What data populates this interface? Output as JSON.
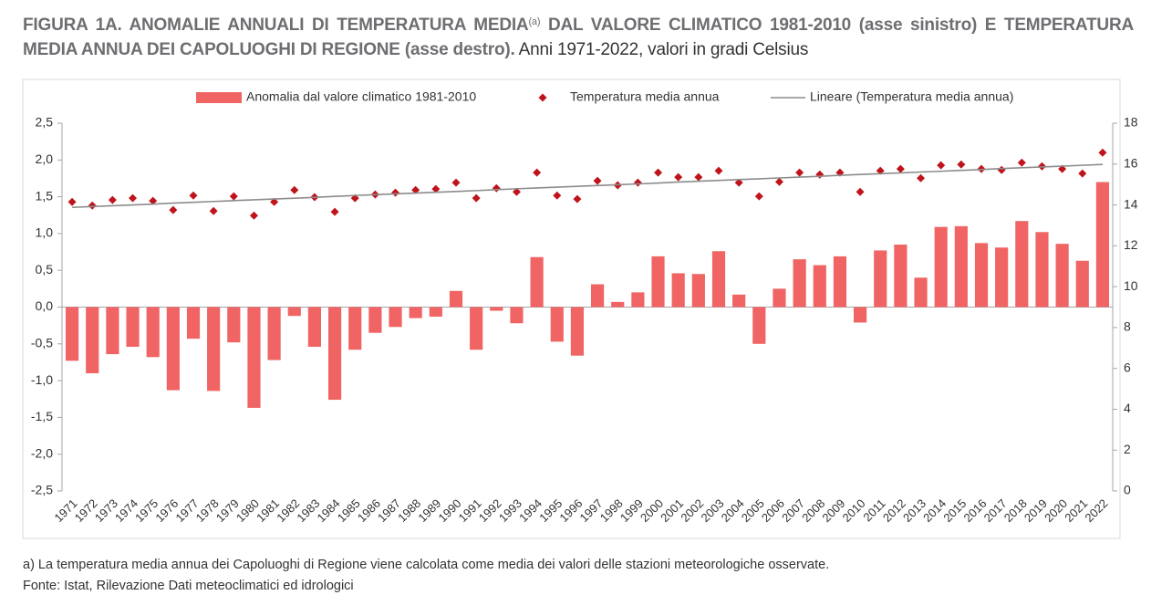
{
  "chart_data": {
    "type": "combo",
    "title": "FIGURA 1A. ANOMALIE ANNUALI DI TEMPERATURA MEDIA",
    "title_note": "(a)",
    "title_rest": "DAL VALORE CLIMATICO 1981-2010 (asse sinistro) E TEMPERATURA MEDIA ANNUA DEI CAPOLUOGHI DI REGIONE (asse destro).",
    "subtitle": "Anni 1971-2022, valori in gradi Celsius",
    "categories": [
      "1971",
      "1972",
      "1973",
      "1974",
      "1975",
      "1976",
      "1977",
      "1978",
      "1979",
      "1980",
      "1981",
      "1982",
      "1983",
      "1984",
      "1985",
      "1986",
      "1987",
      "1988",
      "1989",
      "1990",
      "1991",
      "1992",
      "1993",
      "1994",
      "1995",
      "1996",
      "1997",
      "1998",
      "1999",
      "2000",
      "2001",
      "2002",
      "2003",
      "2004",
      "2005",
      "2006",
      "2007",
      "2008",
      "2009",
      "2010",
      "2011",
      "2012",
      "2013",
      "2014",
      "2015",
      "2016",
      "2017",
      "2018",
      "2019",
      "2020",
      "2021",
      "2022"
    ],
    "series": [
      {
        "name": "Anomalia dal valore climatico 1981-2010",
        "type": "bar",
        "color": "#f06464",
        "values": [
          -0.73,
          -0.9,
          -0.64,
          -0.54,
          -0.68,
          -1.13,
          -0.43,
          -1.14,
          -0.48,
          -1.37,
          -0.72,
          -0.12,
          -0.54,
          -1.26,
          -0.58,
          -0.35,
          -0.27,
          -0.15,
          -0.13,
          0.22,
          -0.58,
          -0.05,
          -0.22,
          0.68,
          -0.47,
          -0.66,
          0.31,
          0.07,
          0.2,
          0.69,
          0.46,
          0.45,
          0.76,
          0.17,
          -0.5,
          0.25,
          0.65,
          0.57,
          0.69,
          -0.21,
          0.77,
          0.85,
          0.4,
          1.09,
          1.1,
          0.87,
          0.81,
          1.17,
          1.02,
          0.86,
          0.63,
          1.7
        ]
      },
      {
        "name": "Temperatura media annua",
        "type": "scatter",
        "axis": "y2",
        "color": "#c0141c",
        "values": [
          14.15,
          13.97,
          14.24,
          14.33,
          14.2,
          13.75,
          14.46,
          13.7,
          14.42,
          13.48,
          14.15,
          14.73,
          14.38,
          13.66,
          14.33,
          14.51,
          14.6,
          14.73,
          14.78,
          15.09,
          14.33,
          14.82,
          14.64,
          15.58,
          14.46,
          14.29,
          15.18,
          14.96,
          15.09,
          15.58,
          15.36,
          15.36,
          15.67,
          15.09,
          14.42,
          15.13,
          15.58,
          15.49,
          15.58,
          14.64,
          15.67,
          15.76,
          15.31,
          15.94,
          15.98,
          15.76,
          15.71,
          16.07,
          15.89,
          15.76,
          15.54,
          16.56
        ]
      },
      {
        "name": "Lineare (Temperatura media annua)",
        "type": "line",
        "axis": "y2",
        "color": "#8c8c8c",
        "values": [
          13.88,
          13.92,
          13.96,
          14.0,
          14.04,
          14.09,
          14.13,
          14.17,
          14.21,
          14.25,
          14.29,
          14.33,
          14.37,
          14.42,
          14.46,
          14.5,
          14.54,
          14.58,
          14.62,
          14.66,
          14.7,
          14.75,
          14.79,
          14.83,
          14.87,
          14.91,
          14.95,
          14.99,
          15.03,
          15.07,
          15.12,
          15.16,
          15.2,
          15.24,
          15.28,
          15.32,
          15.36,
          15.4,
          15.45,
          15.49,
          15.53,
          15.57,
          15.61,
          15.65,
          15.69,
          15.73,
          15.78,
          15.82,
          15.86,
          15.9,
          15.94,
          15.98
        ]
      }
    ],
    "ylim": [
      -2.5,
      2.5
    ],
    "yticks": [
      {
        "value": 2.5,
        "label": "2,5"
      },
      {
        "value": 2.0,
        "label": "2,0"
      },
      {
        "value": 1.5,
        "label": "1,5"
      },
      {
        "value": 1.0,
        "label": "1,0"
      },
      {
        "value": 0.5,
        "label": "0,5"
      },
      {
        "value": 0,
        "label": "0,0"
      },
      {
        "value": -0.5,
        "label": "-0,5"
      },
      {
        "value": -1.0,
        "label": "-1,0"
      },
      {
        "value": -1.5,
        "label": "-1,5"
      },
      {
        "value": -2.0,
        "label": "-2,0"
      },
      {
        "value": -2.5,
        "label": "-2,5"
      }
    ],
    "y2lim": [
      0,
      18
    ],
    "y2ticks": [
      0,
      2,
      4,
      6,
      8,
      10,
      12,
      14,
      16,
      18
    ],
    "grid": false,
    "legend": "top",
    "footnote": "a) La temperatura media annua dei Capoluoghi di Regione viene calcolata come media dei valori delle stazioni meteorologiche osservate.",
    "source": "Fonte: Istat, Rilevazione Dati meteoclimatici ed idrologici"
  }
}
